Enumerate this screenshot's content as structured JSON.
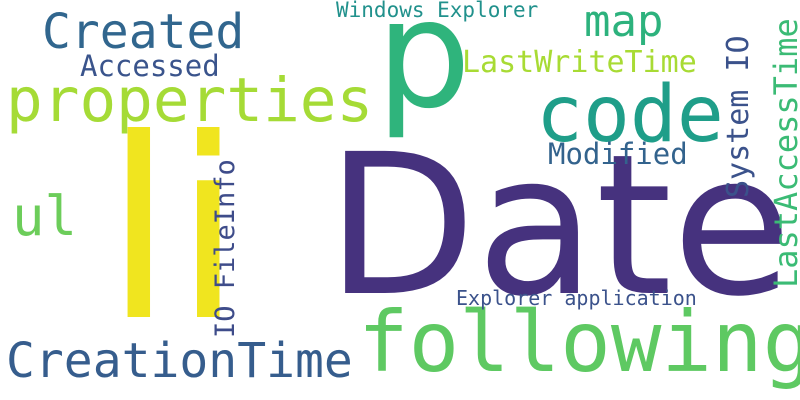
{
  "words": [
    {
      "text": "Date",
      "color": "#46327e"
    },
    {
      "text": "li",
      "color": "#f0e51f"
    },
    {
      "text": "p",
      "color": "#2fb47c"
    },
    {
      "text": "following",
      "color": "#5ec962"
    },
    {
      "text": "code",
      "color": "#1f9e89"
    },
    {
      "text": "properties",
      "color": "#a5db36"
    },
    {
      "text": "CreationTime",
      "color": "#365d8d"
    },
    {
      "text": "Created",
      "color": "#31668e"
    },
    {
      "text": "ul",
      "color": "#6ccd5a"
    },
    {
      "text": "map",
      "color": "#2db27d"
    },
    {
      "text": "LastAccessTime",
      "color": "#3bbb75"
    },
    {
      "text": "LastWriteTime",
      "color": "#a8db34"
    },
    {
      "text": "System IO",
      "color": "#3b528b"
    },
    {
      "text": "IO FileInfo",
      "color": "#3e4c8a"
    },
    {
      "text": "Accessed",
      "color": "#3a548c"
    },
    {
      "text": "Modified",
      "color": "#33638d"
    },
    {
      "text": "Windows Explorer",
      "color": "#21918c"
    },
    {
      "text": "Explorer application",
      "color": "#3b528b"
    }
  ]
}
